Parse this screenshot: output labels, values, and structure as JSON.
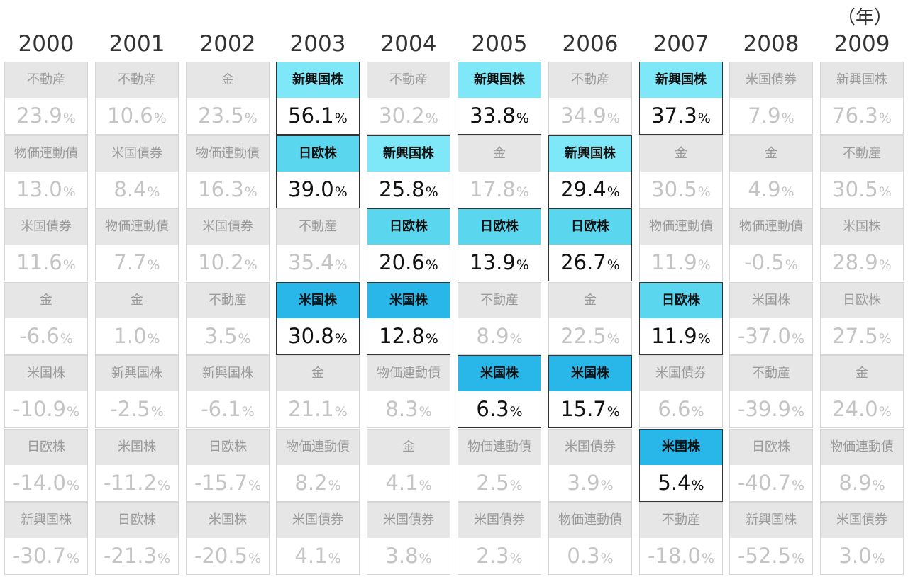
{
  "unit_label": "（年）",
  "highlight_colors": {
    "新興国株": "#7fe8f8",
    "日欧株": "#5bd6ef",
    "米国株": "#29b6e8"
  },
  "chart_data": {
    "type": "table",
    "percent_sign": "%",
    "years": [
      {
        "year": "2000",
        "rows": [
          {
            "asset": "不動産",
            "value": "23.9"
          },
          {
            "asset": "物価連動債",
            "value": "13.0"
          },
          {
            "asset": "米国債券",
            "value": "11.6"
          },
          {
            "asset": "金",
            "value": "-6.6"
          },
          {
            "asset": "米国株",
            "value": "-10.9"
          },
          {
            "asset": "日欧株",
            "value": "-14.0"
          },
          {
            "asset": "新興国株",
            "value": "-30.7"
          }
        ]
      },
      {
        "year": "2001",
        "rows": [
          {
            "asset": "不動産",
            "value": "10.6"
          },
          {
            "asset": "米国債券",
            "value": "8.4"
          },
          {
            "asset": "物価連動債",
            "value": "7.7"
          },
          {
            "asset": "金",
            "value": "1.0"
          },
          {
            "asset": "新興国株",
            "value": "-2.5"
          },
          {
            "asset": "米国株",
            "value": "-11.2"
          },
          {
            "asset": "日欧株",
            "value": "-21.3"
          }
        ]
      },
      {
        "year": "2002",
        "rows": [
          {
            "asset": "金",
            "value": "23.5"
          },
          {
            "asset": "物価連動債",
            "value": "16.3"
          },
          {
            "asset": "米国債券",
            "value": "10.2"
          },
          {
            "asset": "不動産",
            "value": "3.5"
          },
          {
            "asset": "新興国株",
            "value": "-6.1"
          },
          {
            "asset": "日欧株",
            "value": "-15.7"
          },
          {
            "asset": "米国株",
            "value": "-20.5"
          }
        ]
      },
      {
        "year": "2003",
        "rows": [
          {
            "asset": "新興国株",
            "value": "56.1",
            "highlight": true
          },
          {
            "asset": "日欧株",
            "value": "39.0",
            "highlight": true
          },
          {
            "asset": "不動産",
            "value": "35.4"
          },
          {
            "asset": "米国株",
            "value": "30.8",
            "highlight": true
          },
          {
            "asset": "金",
            "value": "21.1"
          },
          {
            "asset": "物価連動債",
            "value": "8.2"
          },
          {
            "asset": "米国債券",
            "value": "4.1"
          }
        ]
      },
      {
        "year": "2004",
        "rows": [
          {
            "asset": "不動産",
            "value": "30.2"
          },
          {
            "asset": "新興国株",
            "value": "25.8",
            "highlight": true
          },
          {
            "asset": "日欧株",
            "value": "20.6",
            "highlight": true
          },
          {
            "asset": "米国株",
            "value": "12.8",
            "highlight": true
          },
          {
            "asset": "物価連動債",
            "value": "8.3"
          },
          {
            "asset": "金",
            "value": "4.1"
          },
          {
            "asset": "米国債券",
            "value": "3.8"
          }
        ]
      },
      {
        "year": "2005",
        "rows": [
          {
            "asset": "新興国株",
            "value": "33.8",
            "highlight": true
          },
          {
            "asset": "金",
            "value": "17.8"
          },
          {
            "asset": "日欧株",
            "value": "13.9",
            "highlight": true
          },
          {
            "asset": "不動産",
            "value": "8.9"
          },
          {
            "asset": "米国株",
            "value": "6.3",
            "highlight": true
          },
          {
            "asset": "物価連動債",
            "value": "2.5"
          },
          {
            "asset": "米国債券",
            "value": "2.3"
          }
        ]
      },
      {
        "year": "2006",
        "rows": [
          {
            "asset": "不動産",
            "value": "34.9"
          },
          {
            "asset": "新興国株",
            "value": "29.4",
            "highlight": true
          },
          {
            "asset": "日欧株",
            "value": "26.7",
            "highlight": true
          },
          {
            "asset": "金",
            "value": "22.5"
          },
          {
            "asset": "米国株",
            "value": "15.7",
            "highlight": true
          },
          {
            "asset": "米国債券",
            "value": "3.9"
          },
          {
            "asset": "物価連動債",
            "value": "0.3"
          }
        ]
      },
      {
        "year": "2007",
        "rows": [
          {
            "asset": "新興国株",
            "value": "37.3",
            "highlight": true
          },
          {
            "asset": "金",
            "value": "30.5"
          },
          {
            "asset": "物価連動債",
            "value": "11.9"
          },
          {
            "asset": "日欧株",
            "value": "11.9",
            "highlight": true
          },
          {
            "asset": "米国債券",
            "value": "6.6"
          },
          {
            "asset": "米国株",
            "value": "5.4",
            "highlight": true
          },
          {
            "asset": "不動産",
            "value": "-18.0"
          }
        ]
      },
      {
        "year": "2008",
        "rows": [
          {
            "asset": "米国債券",
            "value": "7.9"
          },
          {
            "asset": "金",
            "value": "4.9"
          },
          {
            "asset": "物価連動債",
            "value": "-0.5"
          },
          {
            "asset": "米国株",
            "value": "-37.0"
          },
          {
            "asset": "不動産",
            "value": "-39.9"
          },
          {
            "asset": "日欧株",
            "value": "-40.7"
          },
          {
            "asset": "新興国株",
            "value": "-52.5"
          }
        ]
      },
      {
        "year": "2009",
        "rows": [
          {
            "asset": "新興国株",
            "value": "76.3"
          },
          {
            "asset": "不動産",
            "value": "30.5"
          },
          {
            "asset": "米国株",
            "value": "28.9"
          },
          {
            "asset": "日欧株",
            "value": "27.5"
          },
          {
            "asset": "金",
            "value": "24.0"
          },
          {
            "asset": "物価連動債",
            "value": "8.9"
          },
          {
            "asset": "米国債券",
            "value": "3.0"
          }
        ]
      }
    ]
  }
}
